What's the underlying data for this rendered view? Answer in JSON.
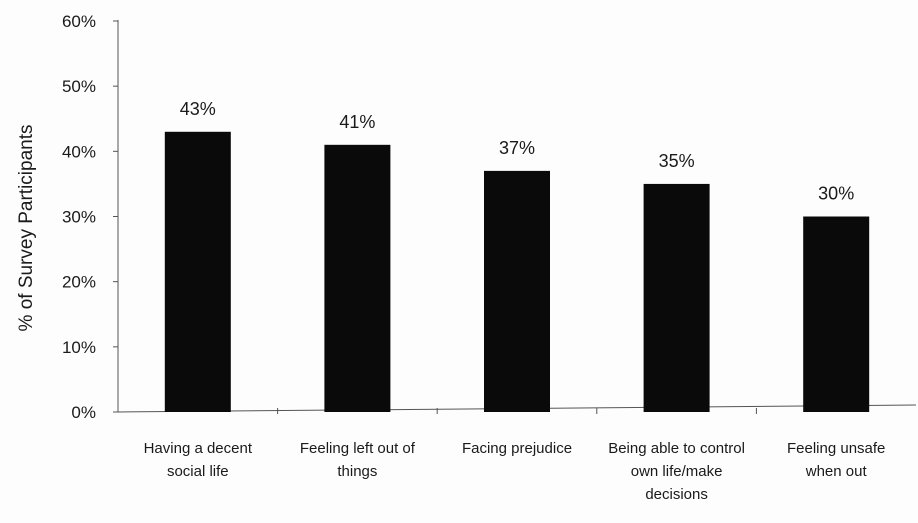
{
  "chart_data": {
    "type": "bar",
    "title": "",
    "xlabel": "",
    "ylabel": "% of Survey Participants",
    "ylim": [
      0,
      60
    ],
    "yticks": [
      "0%",
      "10%",
      "20%",
      "30%",
      "40%",
      "50%",
      "60%"
    ],
    "categories": [
      [
        "Having a decent",
        "social life"
      ],
      [
        "Feeling left out of",
        "things"
      ],
      [
        "Facing prejudice"
      ],
      [
        "Being able to control",
        "own life/make",
        "decisions"
      ],
      [
        "Feeling unsafe",
        "when out"
      ]
    ],
    "values": [
      43,
      41,
      37,
      35,
      30
    ],
    "data_labels": [
      "43%",
      "41%",
      "37%",
      "35%",
      "30%"
    ],
    "bar_color": "#0a0a0a",
    "grid": false,
    "legend": "none"
  }
}
